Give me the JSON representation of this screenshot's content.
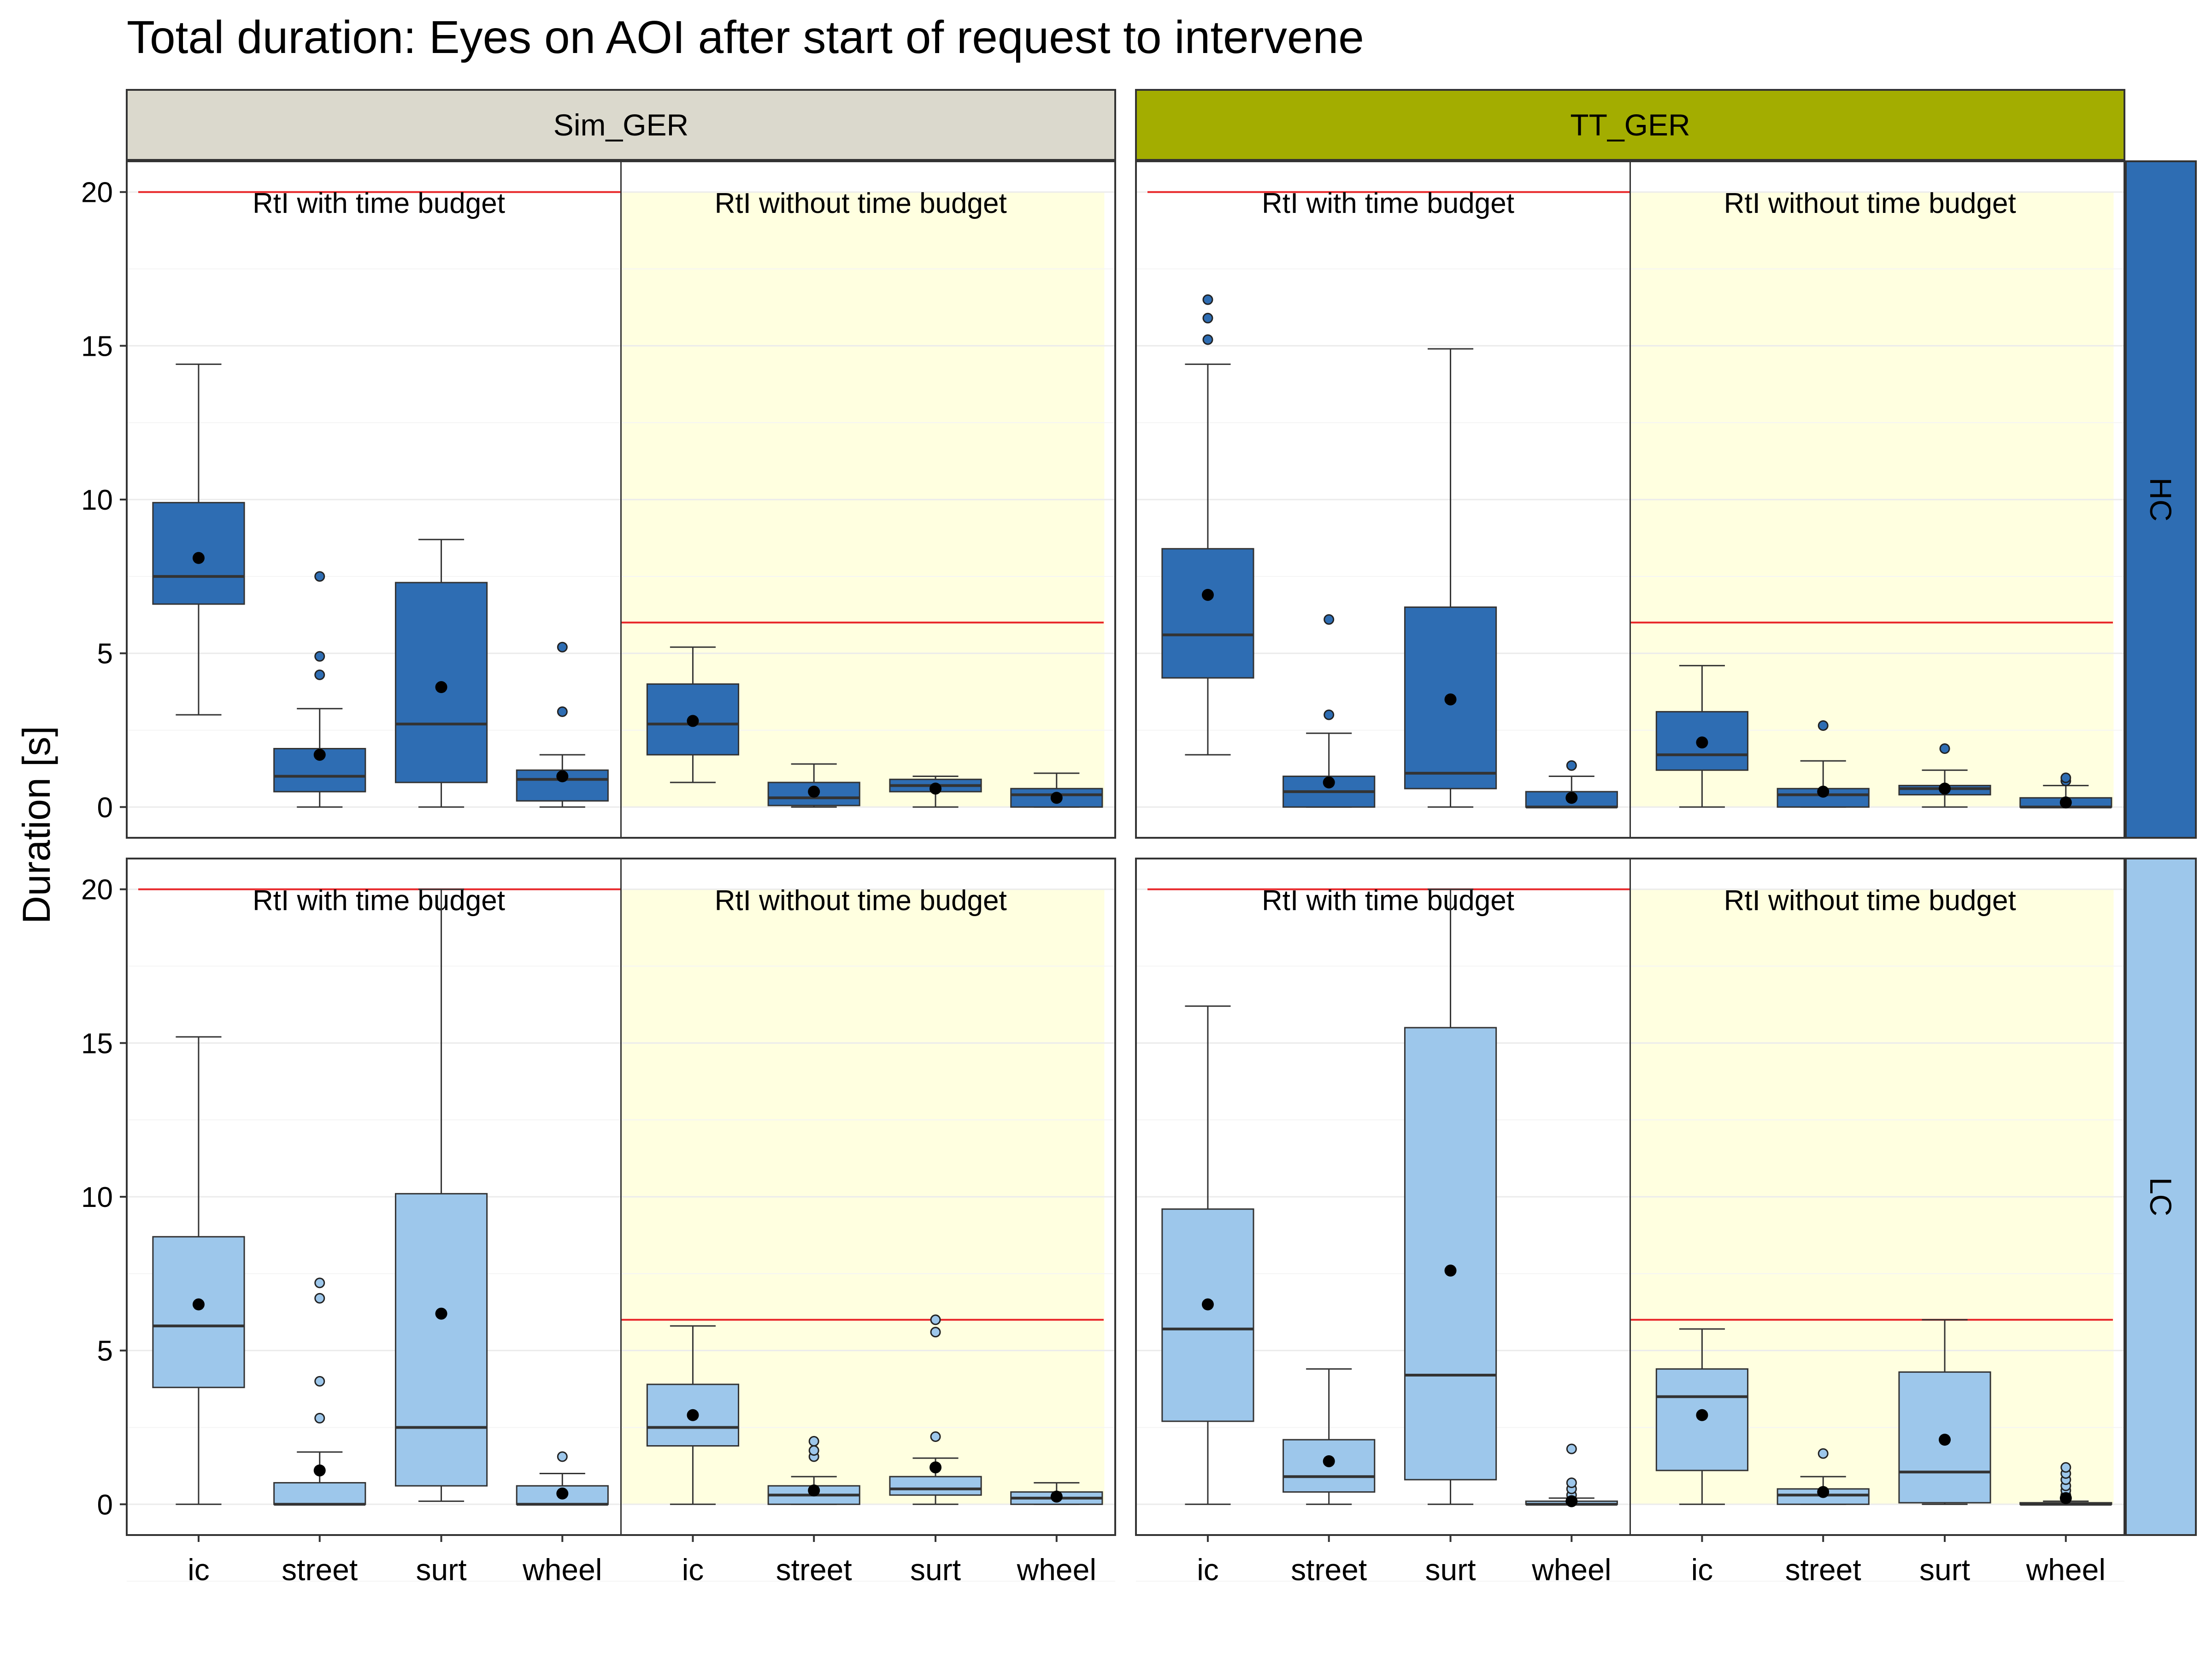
{
  "chart_data": {
    "type": "box",
    "title": "Total duration: Eyes on AOI after start of request to intervene",
    "ylabel": "Duration [s]",
    "xlabel": "",
    "ylim": [
      -1,
      21
    ],
    "yticks": [
      0,
      5,
      10,
      15,
      20
    ],
    "grid": true,
    "categories": [
      "ic",
      "street",
      "surt",
      "wheel"
    ],
    "columns": [
      {
        "label": "Sim_GER",
        "color": "#dbd9cd"
      },
      {
        "label": "TT_GER",
        "color": "#a3ad00"
      }
    ],
    "rows": [
      {
        "label": "HC",
        "color": "#2e6db3",
        "fill": "#2e6db3"
      },
      {
        "label": "LC",
        "color": "#9dc7eb",
        "fill": "#9dc7eb"
      }
    ],
    "regions": [
      {
        "label": "RtI with time budget",
        "limit": 20,
        "shaded": false
      },
      {
        "label": "RtI without time budget",
        "limit": 6,
        "shaded": true,
        "color": "#ffffe0"
      }
    ],
    "limit_line_color": "#e8282b",
    "mean_marker": "black dot",
    "panels": [
      {
        "column": "Sim_GER",
        "row": "HC",
        "regions": [
          [
            {
              "category": "ic",
              "whisker_low": 3.0,
              "q1": 6.6,
              "median": 7.5,
              "q3": 9.9,
              "whisker_high": 14.4,
              "mean": 8.1,
              "outliers": []
            },
            {
              "category": "street",
              "whisker_low": 0.0,
              "q1": 0.5,
              "median": 1.0,
              "q3": 1.9,
              "whisker_high": 3.2,
              "mean": 1.7,
              "outliers": [
                4.3,
                4.9,
                7.5
              ]
            },
            {
              "category": "surt",
              "whisker_low": 0.0,
              "q1": 0.8,
              "median": 2.7,
              "q3": 7.3,
              "whisker_high": 8.7,
              "mean": 3.9,
              "outliers": []
            },
            {
              "category": "wheel",
              "whisker_low": 0.0,
              "q1": 0.2,
              "median": 0.9,
              "q3": 1.2,
              "whisker_high": 1.7,
              "mean": 1.0,
              "outliers": [
                3.1,
                5.2
              ]
            }
          ],
          [
            {
              "category": "ic",
              "whisker_low": 0.8,
              "q1": 1.7,
              "median": 2.7,
              "q3": 4.0,
              "whisker_high": 5.2,
              "mean": 2.8,
              "outliers": []
            },
            {
              "category": "street",
              "whisker_low": 0.0,
              "q1": 0.05,
              "median": 0.3,
              "q3": 0.8,
              "whisker_high": 1.4,
              "mean": 0.5,
              "outliers": []
            },
            {
              "category": "surt",
              "whisker_low": 0.0,
              "q1": 0.5,
              "median": 0.7,
              "q3": 0.9,
              "whisker_high": 1.0,
              "mean": 0.6,
              "outliers": []
            },
            {
              "category": "wheel",
              "whisker_low": 0.0,
              "q1": 0.0,
              "median": 0.4,
              "q3": 0.6,
              "whisker_high": 1.1,
              "mean": 0.3,
              "outliers": []
            }
          ]
        ]
      },
      {
        "column": "TT_GER",
        "row": "HC",
        "regions": [
          [
            {
              "category": "ic",
              "whisker_low": 1.7,
              "q1": 4.2,
              "median": 5.6,
              "q3": 8.4,
              "whisker_high": 14.4,
              "mean": 6.9,
              "outliers": [
                15.2,
                15.9,
                16.5
              ]
            },
            {
              "category": "street",
              "whisker_low": 0.0,
              "q1": 0.0,
              "median": 0.5,
              "q3": 1.0,
              "whisker_high": 2.4,
              "mean": 0.8,
              "outliers": [
                3.0,
                6.1
              ]
            },
            {
              "category": "surt",
              "whisker_low": 0.0,
              "q1": 0.6,
              "median": 1.1,
              "q3": 6.5,
              "whisker_high": 14.9,
              "mean": 3.5,
              "outliers": []
            },
            {
              "category": "wheel",
              "whisker_low": 0.0,
              "q1": 0.0,
              "median": 0.0,
              "q3": 0.5,
              "whisker_high": 1.0,
              "mean": 0.3,
              "outliers": [
                1.35
              ]
            }
          ],
          [
            {
              "category": "ic",
              "whisker_low": 0.0,
              "q1": 1.2,
              "median": 1.7,
              "q3": 3.1,
              "whisker_high": 4.6,
              "mean": 2.1,
              "outliers": []
            },
            {
              "category": "street",
              "whisker_low": 0.0,
              "q1": 0.0,
              "median": 0.4,
              "q3": 0.6,
              "whisker_high": 1.5,
              "mean": 0.5,
              "outliers": [
                2.65
              ]
            },
            {
              "category": "surt",
              "whisker_low": 0.0,
              "q1": 0.4,
              "median": 0.6,
              "q3": 0.7,
              "whisker_high": 1.2,
              "mean": 0.6,
              "outliers": [
                1.9
              ]
            },
            {
              "category": "wheel",
              "whisker_low": 0.0,
              "q1": 0.0,
              "median": 0.0,
              "q3": 0.3,
              "whisker_high": 0.7,
              "mean": 0.15,
              "outliers": [
                0.85,
                0.95
              ]
            }
          ]
        ]
      },
      {
        "column": "Sim_GER",
        "row": "LC",
        "regions": [
          [
            {
              "category": "ic",
              "whisker_low": 0.0,
              "q1": 3.8,
              "median": 5.8,
              "q3": 8.7,
              "whisker_high": 15.2,
              "mean": 6.5,
              "outliers": []
            },
            {
              "category": "street",
              "whisker_low": 0.0,
              "q1": 0.0,
              "median": 0.0,
              "q3": 0.7,
              "whisker_high": 1.7,
              "mean": 1.1,
              "outliers": [
                2.8,
                4.0,
                6.7,
                7.2
              ]
            },
            {
              "category": "surt",
              "whisker_low": 0.1,
              "q1": 0.6,
              "median": 2.5,
              "q3": 10.1,
              "whisker_high": 20.0,
              "mean": 6.2,
              "outliers": []
            },
            {
              "category": "wheel",
              "whisker_low": 0.0,
              "q1": 0.0,
              "median": 0.0,
              "q3": 0.6,
              "whisker_high": 1.0,
              "mean": 0.35,
              "outliers": [
                1.55
              ]
            }
          ],
          [
            {
              "category": "ic",
              "whisker_low": 0.0,
              "q1": 1.9,
              "median": 2.5,
              "q3": 3.9,
              "whisker_high": 5.8,
              "mean": 2.9,
              "outliers": []
            },
            {
              "category": "street",
              "whisker_low": 0.0,
              "q1": 0.0,
              "median": 0.3,
              "q3": 0.6,
              "whisker_high": 0.9,
              "mean": 0.45,
              "outliers": [
                1.55,
                1.75,
                2.05
              ]
            },
            {
              "category": "surt",
              "whisker_low": 0.0,
              "q1": 0.3,
              "median": 0.5,
              "q3": 0.9,
              "whisker_high": 1.5,
              "mean": 1.2,
              "outliers": [
                2.2,
                5.6,
                6.0
              ]
            },
            {
              "category": "wheel",
              "whisker_low": 0.0,
              "q1": 0.0,
              "median": 0.2,
              "q3": 0.4,
              "whisker_high": 0.7,
              "mean": 0.25,
              "outliers": []
            }
          ]
        ]
      },
      {
        "column": "TT_GER",
        "row": "LC",
        "regions": [
          [
            {
              "category": "ic",
              "whisker_low": 0.0,
              "q1": 2.7,
              "median": 5.7,
              "q3": 9.6,
              "whisker_high": 16.2,
              "mean": 6.5,
              "outliers": []
            },
            {
              "category": "street",
              "whisker_low": 0.0,
              "q1": 0.4,
              "median": 0.9,
              "q3": 2.1,
              "whisker_high": 4.4,
              "mean": 1.4,
              "outliers": []
            },
            {
              "category": "surt",
              "whisker_low": 0.0,
              "q1": 0.8,
              "median": 4.2,
              "q3": 15.5,
              "whisker_high": 20.0,
              "mean": 7.6,
              "outliers": []
            },
            {
              "category": "wheel",
              "whisker_low": 0.0,
              "q1": 0.0,
              "median": 0.0,
              "q3": 0.1,
              "whisker_high": 0.2,
              "mean": 0.1,
              "outliers": [
                0.3,
                0.5,
                0.7,
                1.8
              ]
            }
          ],
          [
            {
              "category": "ic",
              "whisker_low": 0.0,
              "q1": 1.1,
              "median": 3.5,
              "q3": 4.4,
              "whisker_high": 5.7,
              "mean": 2.9,
              "outliers": []
            },
            {
              "category": "street",
              "whisker_low": 0.0,
              "q1": 0.0,
              "median": 0.3,
              "q3": 0.5,
              "whisker_high": 0.9,
              "mean": 0.4,
              "outliers": [
                1.65
              ]
            },
            {
              "category": "surt",
              "whisker_low": 0.0,
              "q1": 0.05,
              "median": 1.05,
              "q3": 4.3,
              "whisker_high": 6.0,
              "mean": 2.1,
              "outliers": []
            },
            {
              "category": "wheel",
              "whisker_low": 0.0,
              "q1": 0.0,
              "median": 0.0,
              "q3": 0.05,
              "whisker_high": 0.1,
              "mean": 0.2,
              "outliers": [
                0.3,
                0.45,
                0.6,
                0.8,
                1.0,
                1.2
              ]
            }
          ]
        ]
      }
    ]
  }
}
